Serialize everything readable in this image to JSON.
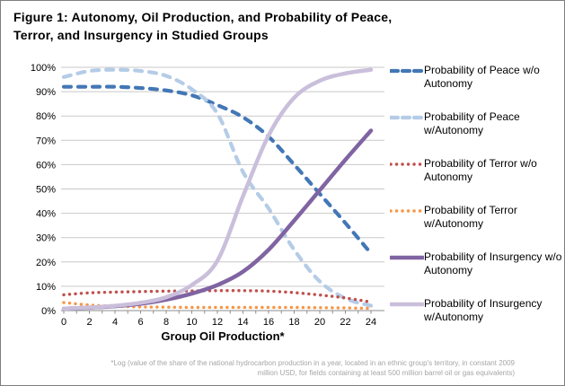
{
  "footnote": {
    "lines": [
      "*Log (value of the share of the national hydrocarbon production in a year, located in an ethnic group's territory, in constant 2009",
      "million USD, for fields containing at least 500 million barrel oil or gas equivalents)"
    ]
  },
  "chart_data": {
    "type": "line",
    "title": "Figure 1: Autonomy, Oil Production, and Probability of Peace, Terror, and Insurgency in Studied Groups",
    "xlabel": "Group Oil Production*",
    "ylabel": "",
    "ylim": [
      0,
      100
    ],
    "grid": true,
    "legend_position": "right",
    "x": [
      0,
      2,
      4,
      6,
      8,
      10,
      12,
      14,
      16,
      18,
      20,
      22,
      24
    ],
    "x_tick_labels": [
      "0",
      "2",
      "4",
      "6",
      "8",
      "10",
      "12",
      "14",
      "16",
      "18",
      "20",
      "22",
      "24"
    ],
    "x_minor_tick_step": 1,
    "y_tick_values": [
      0,
      10,
      20,
      30,
      40,
      50,
      60,
      70,
      80,
      90,
      100
    ],
    "y_tick_labels": [
      "0%",
      "10%",
      "20%",
      "30%",
      "40%",
      "50%",
      "60%",
      "70%",
      "80%",
      "90%",
      "100%"
    ],
    "series": [
      {
        "name": "Probability of Peace w/o Autonomy",
        "color": "#4377B5",
        "line_style": "dashed",
        "values": [
          92,
          92,
          92,
          91.5,
          90.5,
          88.5,
          84.5,
          79.5,
          71.5,
          60,
          48,
          36,
          23.5
        ]
      },
      {
        "name": "Probability of Peace w/Autonomy",
        "color": "#B5CCE7",
        "line_style": "dashed",
        "values": [
          96,
          98.5,
          99,
          98.5,
          96.5,
          91,
          81,
          57,
          42,
          25,
          12,
          5,
          2
        ]
      },
      {
        "name": "Probability of Terror w/o Autonomy",
        "color": "#C0504D",
        "line_style": "dotted",
        "values": [
          6.5,
          7.3,
          7.6,
          7.8,
          8,
          8.1,
          8.2,
          8.2,
          8,
          7.4,
          6.4,
          5.2,
          3.5
        ]
      },
      {
        "name": "Probability of Terror w/Autonomy",
        "color": "#F79646",
        "line_style": "dotted",
        "values": [
          3.3,
          2.3,
          1.8,
          1.5,
          1.4,
          1.3,
          1.3,
          1.3,
          1.3,
          1.3,
          1.2,
          1.1,
          0.9
        ]
      },
      {
        "name": "Probability of Insurgency w/o Autonomy",
        "color": "#8064A2",
        "line_style": "solid",
        "values": [
          0.8,
          1.2,
          1.8,
          2.8,
          4.5,
          7,
          10.5,
          16,
          25,
          37,
          49.5,
          62,
          74
        ]
      },
      {
        "name": "Probability of Insurgency w/Autonomy",
        "color": "#CABFDB",
        "line_style": "solid",
        "values": [
          0.8,
          1.3,
          2,
          3.2,
          5.5,
          10.5,
          20.5,
          47,
          72,
          87.5,
          94.5,
          97.5,
          99
        ]
      }
    ]
  }
}
